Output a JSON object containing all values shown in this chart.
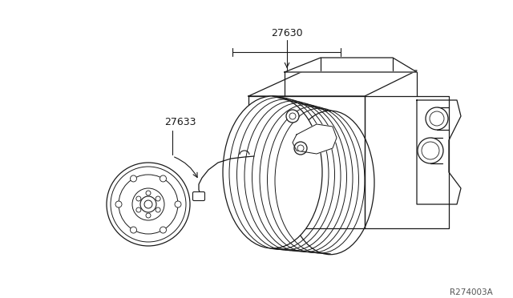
{
  "bg_color": "#ffffff",
  "line_color": "#1a1a1a",
  "fig_width": 6.4,
  "fig_height": 3.72,
  "dpi": 100,
  "label_27630": "27630",
  "label_27633": "27633",
  "ref_code": "R274003A"
}
